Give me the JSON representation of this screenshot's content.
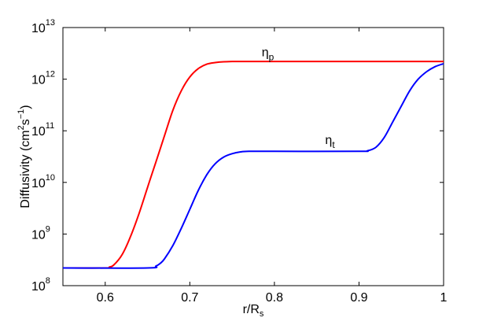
{
  "chart_data": {
    "type": "line",
    "xlabel": {
      "main": "r/R",
      "sub": "s"
    },
    "ylabel": {
      "pre": "Diffusivity (cm",
      "sup1": "2",
      "mid": "s",
      "sup2": "−1",
      "post": ")"
    },
    "xlim": [
      0.55,
      1.0
    ],
    "ylim": [
      100000000,
      10000000000000
    ],
    "yscale": "log",
    "grid": false,
    "xticks": [
      {
        "value": 0.6,
        "label": "0.6"
      },
      {
        "value": 0.7,
        "label": "0.7"
      },
      {
        "value": 0.8,
        "label": "0.8"
      },
      {
        "value": 0.9,
        "label": "0.9"
      },
      {
        "value": 1.0,
        "label": "1"
      }
    ],
    "yticks": [
      {
        "value": 100000000,
        "base": "10",
        "exp": "8"
      },
      {
        "value": 1000000000,
        "base": "10",
        "exp": "9"
      },
      {
        "value": 10000000000,
        "base": "10",
        "exp": "10"
      },
      {
        "value": 100000000000,
        "base": "10",
        "exp": "11"
      },
      {
        "value": 1000000000000,
        "base": "10",
        "exp": "12"
      },
      {
        "value": 10000000000000,
        "base": "10",
        "exp": "13"
      }
    ],
    "series": [
      {
        "color": "#ff0000",
        "label_glyph": "η",
        "label_sub": "p",
        "label_at": {
          "x": 0.785,
          "y": 2800000000000
        },
        "x": [
          0.55,
          0.6,
          0.605,
          0.61,
          0.62,
          0.63,
          0.64,
          0.65,
          0.66,
          0.67,
          0.68,
          0.69,
          0.7,
          0.71,
          0.72,
          0.73,
          0.74,
          0.75,
          0.76,
          0.8,
          0.9,
          1.0
        ],
        "y": [
          220000000,
          220000000,
          230000000,
          250000000,
          400000000,
          900000000,
          2500000000,
          8000000000,
          25000000000,
          80000000000,
          250000000000,
          600000000000,
          1100000000000,
          1600000000000,
          1950000000000,
          2100000000000,
          2170000000000,
          2200000000000,
          2200000000000,
          2200000000000,
          2200000000000,
          2200000000000
        ]
      },
      {
        "color": "#0000ff",
        "label_glyph": "η",
        "label_sub": "t",
        "label_at": {
          "x": 0.86,
          "y": 55000000000
        },
        "x": [
          0.55,
          0.65,
          0.66,
          0.665,
          0.67,
          0.68,
          0.69,
          0.7,
          0.71,
          0.72,
          0.73,
          0.74,
          0.75,
          0.76,
          0.77,
          0.8,
          0.9,
          0.91,
          0.92,
          0.93,
          0.94,
          0.95,
          0.96,
          0.97,
          0.98,
          0.99,
          1.0
        ],
        "y": [
          220000000,
          220000000,
          240000000,
          270000000,
          330000000,
          600000000,
          1300000000,
          3000000000,
          7000000000,
          14000000000,
          23000000000,
          31000000000,
          36000000000,
          39000000000,
          40000000000,
          40000000000,
          40000000000,
          41000000000,
          48000000000,
          75000000000,
          150000000000,
          300000000000,
          600000000000,
          1000000000000,
          1400000000000,
          1750000000000,
          2000000000000
        ]
      }
    ]
  }
}
